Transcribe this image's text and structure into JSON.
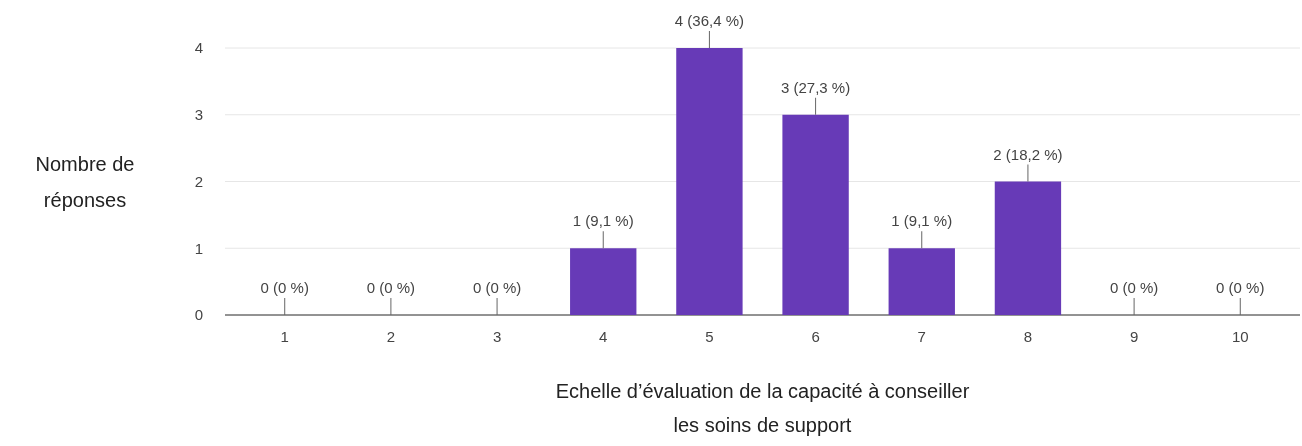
{
  "chart_data": {
    "type": "bar",
    "xlabel": "Echelle d’évaluation de la capacité à conseiller les soins de support",
    "ylabel": "Nombre de réponses",
    "categories": [
      "1",
      "2",
      "3",
      "4",
      "5",
      "6",
      "7",
      "8",
      "9",
      "10"
    ],
    "values": [
      0,
      0,
      0,
      1,
      4,
      3,
      1,
      2,
      0,
      0
    ],
    "value_labels": [
      "0 (0 %)",
      "0 (0 %)",
      "0 (0 %)",
      "1 (9,1 %)",
      "4 (36,4 %)",
      "3 (27,3 %)",
      "1 (9,1 %)",
      "2 (18,2 %)",
      "0 (0 %)",
      "0 (0 %)"
    ],
    "color": "#673ab7",
    "ylim": [
      0,
      4
    ],
    "yticks": [
      0,
      1,
      2,
      3,
      4
    ],
    "grid": "y"
  }
}
